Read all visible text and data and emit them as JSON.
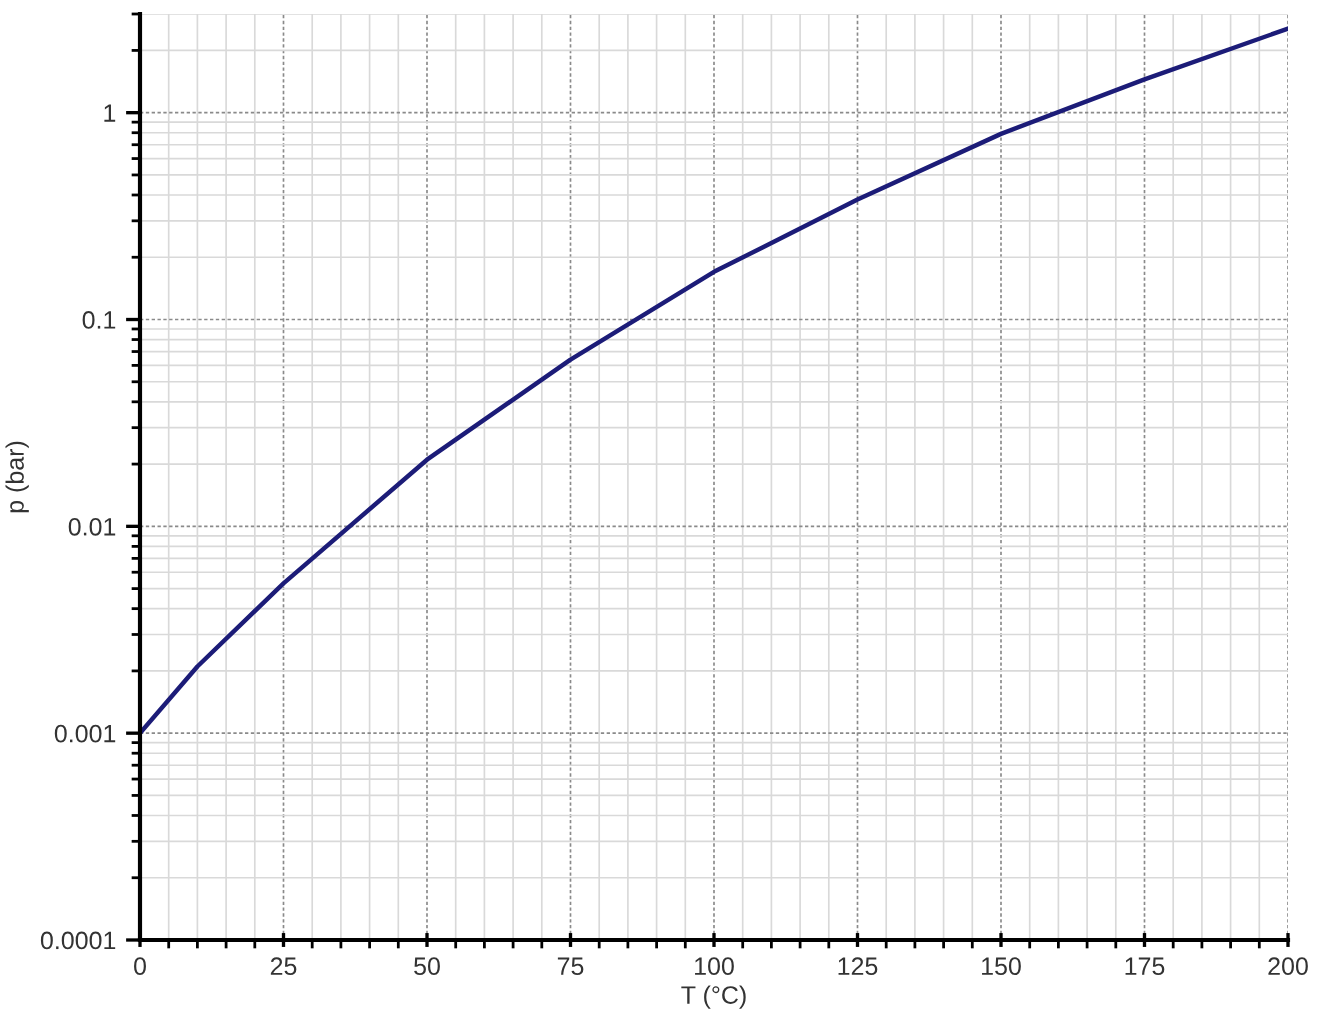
{
  "chart_data": {
    "type": "line",
    "xlabel": "T (°C)",
    "ylabel": "p (bar)",
    "x": [
      0,
      10,
      25,
      50,
      75,
      100,
      125,
      150,
      175,
      200
    ],
    "series": [
      {
        "color": "#1c1c78",
        "values": [
          0.001,
          0.0021,
          0.0053,
          0.021,
          0.064,
          0.17,
          0.38,
          0.79,
          1.45,
          2.55
        ]
      }
    ],
    "xlim": [
      0,
      200
    ],
    "xticks": [
      0,
      25,
      50,
      75,
      100,
      125,
      150,
      175,
      200
    ],
    "ylim": [
      0.0001,
      3
    ],
    "yticks": [
      0.0001,
      0.001,
      0.01,
      0.1,
      1
    ],
    "log": "y",
    "grid": true,
    "marker": "none",
    "line_style": "solid",
    "legend": false
  }
}
